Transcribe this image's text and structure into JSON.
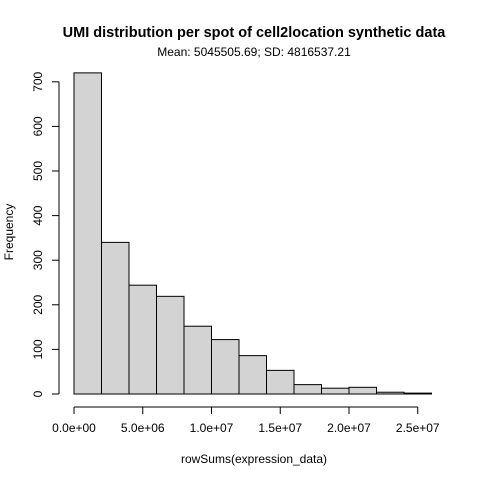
{
  "chart_data": {
    "type": "bar",
    "title": "UMI distribution per spot of cell2location synthetic data",
    "subtitle": "Mean: 5045505.69; SD: 4816537.21",
    "xlabel": "rowSums(expression_data)",
    "ylabel": "Frequency",
    "bin_edges": [
      0,
      2000000,
      4000000,
      6000000,
      8000000,
      10000000,
      12000000,
      14000000,
      16000000,
      18000000,
      20000000,
      22000000,
      24000000,
      26000000
    ],
    "values": [
      720,
      340,
      244,
      219,
      152,
      122,
      86,
      53,
      21,
      13,
      15,
      4,
      2
    ],
    "xlim": [
      0,
      26000000
    ],
    "ylim": [
      0,
      720
    ],
    "x_ticks": [
      0,
      5000000,
      10000000,
      15000000,
      20000000,
      25000000
    ],
    "x_tick_labels": [
      "0.0e+00",
      "5.0e+06",
      "1.0e+07",
      "1.5e+07",
      "2.0e+07",
      "2.5e+07"
    ],
    "y_ticks": [
      0,
      100,
      200,
      300,
      400,
      500,
      600,
      700
    ],
    "y_tick_labels": [
      "0",
      "100",
      "200",
      "300",
      "400",
      "500",
      "600",
      "700"
    ],
    "colors": {
      "bar_fill": "#d3d3d3",
      "bar_stroke": "#000000"
    }
  }
}
